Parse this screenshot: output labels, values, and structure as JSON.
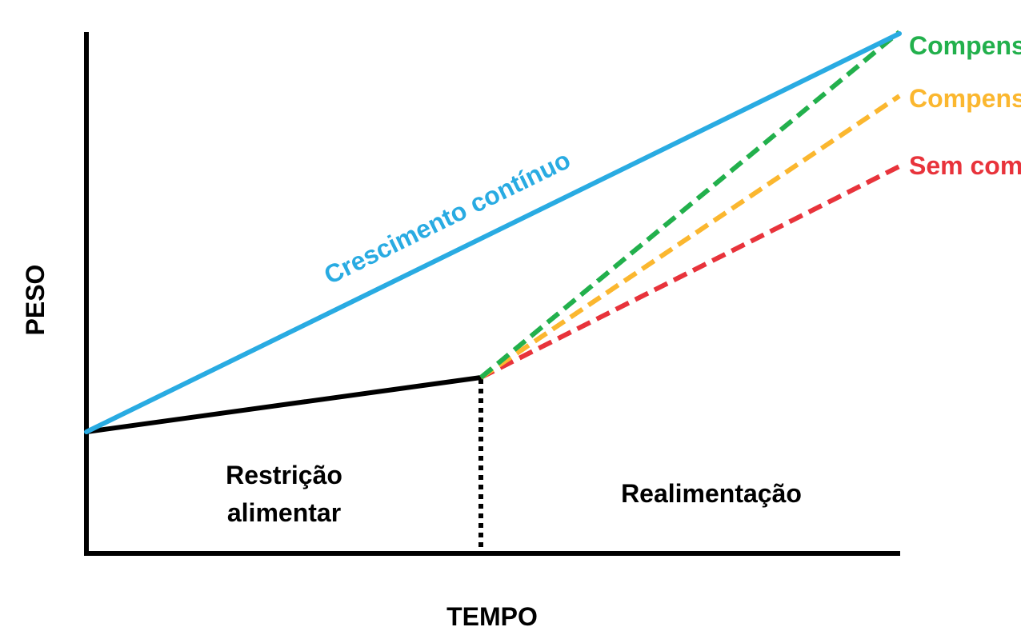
{
  "axes": {
    "y_label": "PESO",
    "x_label": "TEMPO"
  },
  "regions": {
    "restriction": [
      "Restrição",
      "alimentar"
    ],
    "refeeding": "Realimentação"
  },
  "curves": {
    "continuous": {
      "label": "Crescimento contínuo",
      "color": "#29abe2",
      "style": "solid"
    },
    "restricted": {
      "label": "",
      "color": "#000000",
      "style": "solid"
    },
    "full_comp": {
      "label": "Compens",
      "color": "#22b04c",
      "style": "dashed"
    },
    "partial_comp": {
      "label": "Compens",
      "color": "#fbb72f",
      "style": "dashed"
    },
    "no_comp": {
      "label": "Sem com",
      "color": "#e8333b",
      "style": "dashed"
    }
  },
  "divider": {
    "style": "dotted",
    "color": "#000000"
  }
}
